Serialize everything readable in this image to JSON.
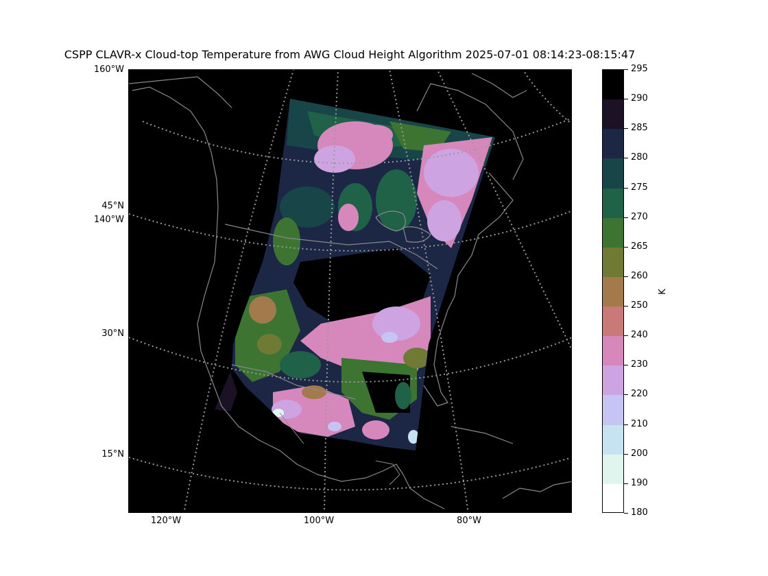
{
  "title": "CSPP CLAVR-x Cloud-top Temperature from AWG Cloud Height Algorithm 2025-07-01 08:14:23-08:15:47",
  "lat_labels": [
    "45°N",
    "30°N",
    "15°N"
  ],
  "lon_left_labels": [
    "160°W",
    "140°W"
  ],
  "lon_bottom_labels": [
    "120°W",
    "100°W",
    "80°W"
  ],
  "colorbar": {
    "unit": "K",
    "ticks": [
      "295",
      "290",
      "285",
      "280",
      "275",
      "270",
      "265",
      "260",
      "250",
      "240",
      "230",
      "220",
      "210",
      "200",
      "190",
      "180"
    ],
    "colors": [
      "#000000",
      "#1c1226",
      "#1c2746",
      "#184548",
      "#1f6248",
      "#3d7432",
      "#717a35",
      "#a37a4c",
      "#c97977",
      "#d688bd",
      "#cda3e1",
      "#c6c4f3",
      "#c5e3f0",
      "#e0f5ee",
      "#ffffff"
    ]
  },
  "colors": {
    "background": "#000000",
    "coastline": "#8a8a8a",
    "graticule": "#9a9a9a"
  },
  "map_data": {
    "projection": "lambert-conformal",
    "product": "cloud-top temperature",
    "gridlines": "dotted"
  }
}
